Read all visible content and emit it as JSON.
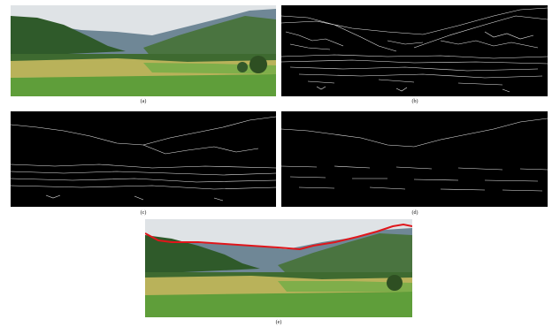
{
  "figure": {
    "panels": [
      {
        "id": "a",
        "caption": "(a)",
        "content": "landscape-photo"
      },
      {
        "id": "b",
        "caption": "(b)",
        "content": "edge-map-dense"
      },
      {
        "id": "c",
        "caption": "(c)",
        "content": "edge-map-filtered"
      },
      {
        "id": "d",
        "caption": "(d)",
        "content": "edge-map-sparse"
      },
      {
        "id": "e",
        "caption": "(e)",
        "content": "landscape-photo-with-skyline"
      }
    ],
    "colors": {
      "sky": "#dfe3e6",
      "mountain_far": "#6f8796",
      "hill_green": "#3f6b33",
      "field_yellow": "#b9b25a",
      "grass": "#5f9e3a",
      "edge_line": "#e8e8e8",
      "edge_bg": "#000000",
      "skyline": "#e0161b"
    }
  }
}
